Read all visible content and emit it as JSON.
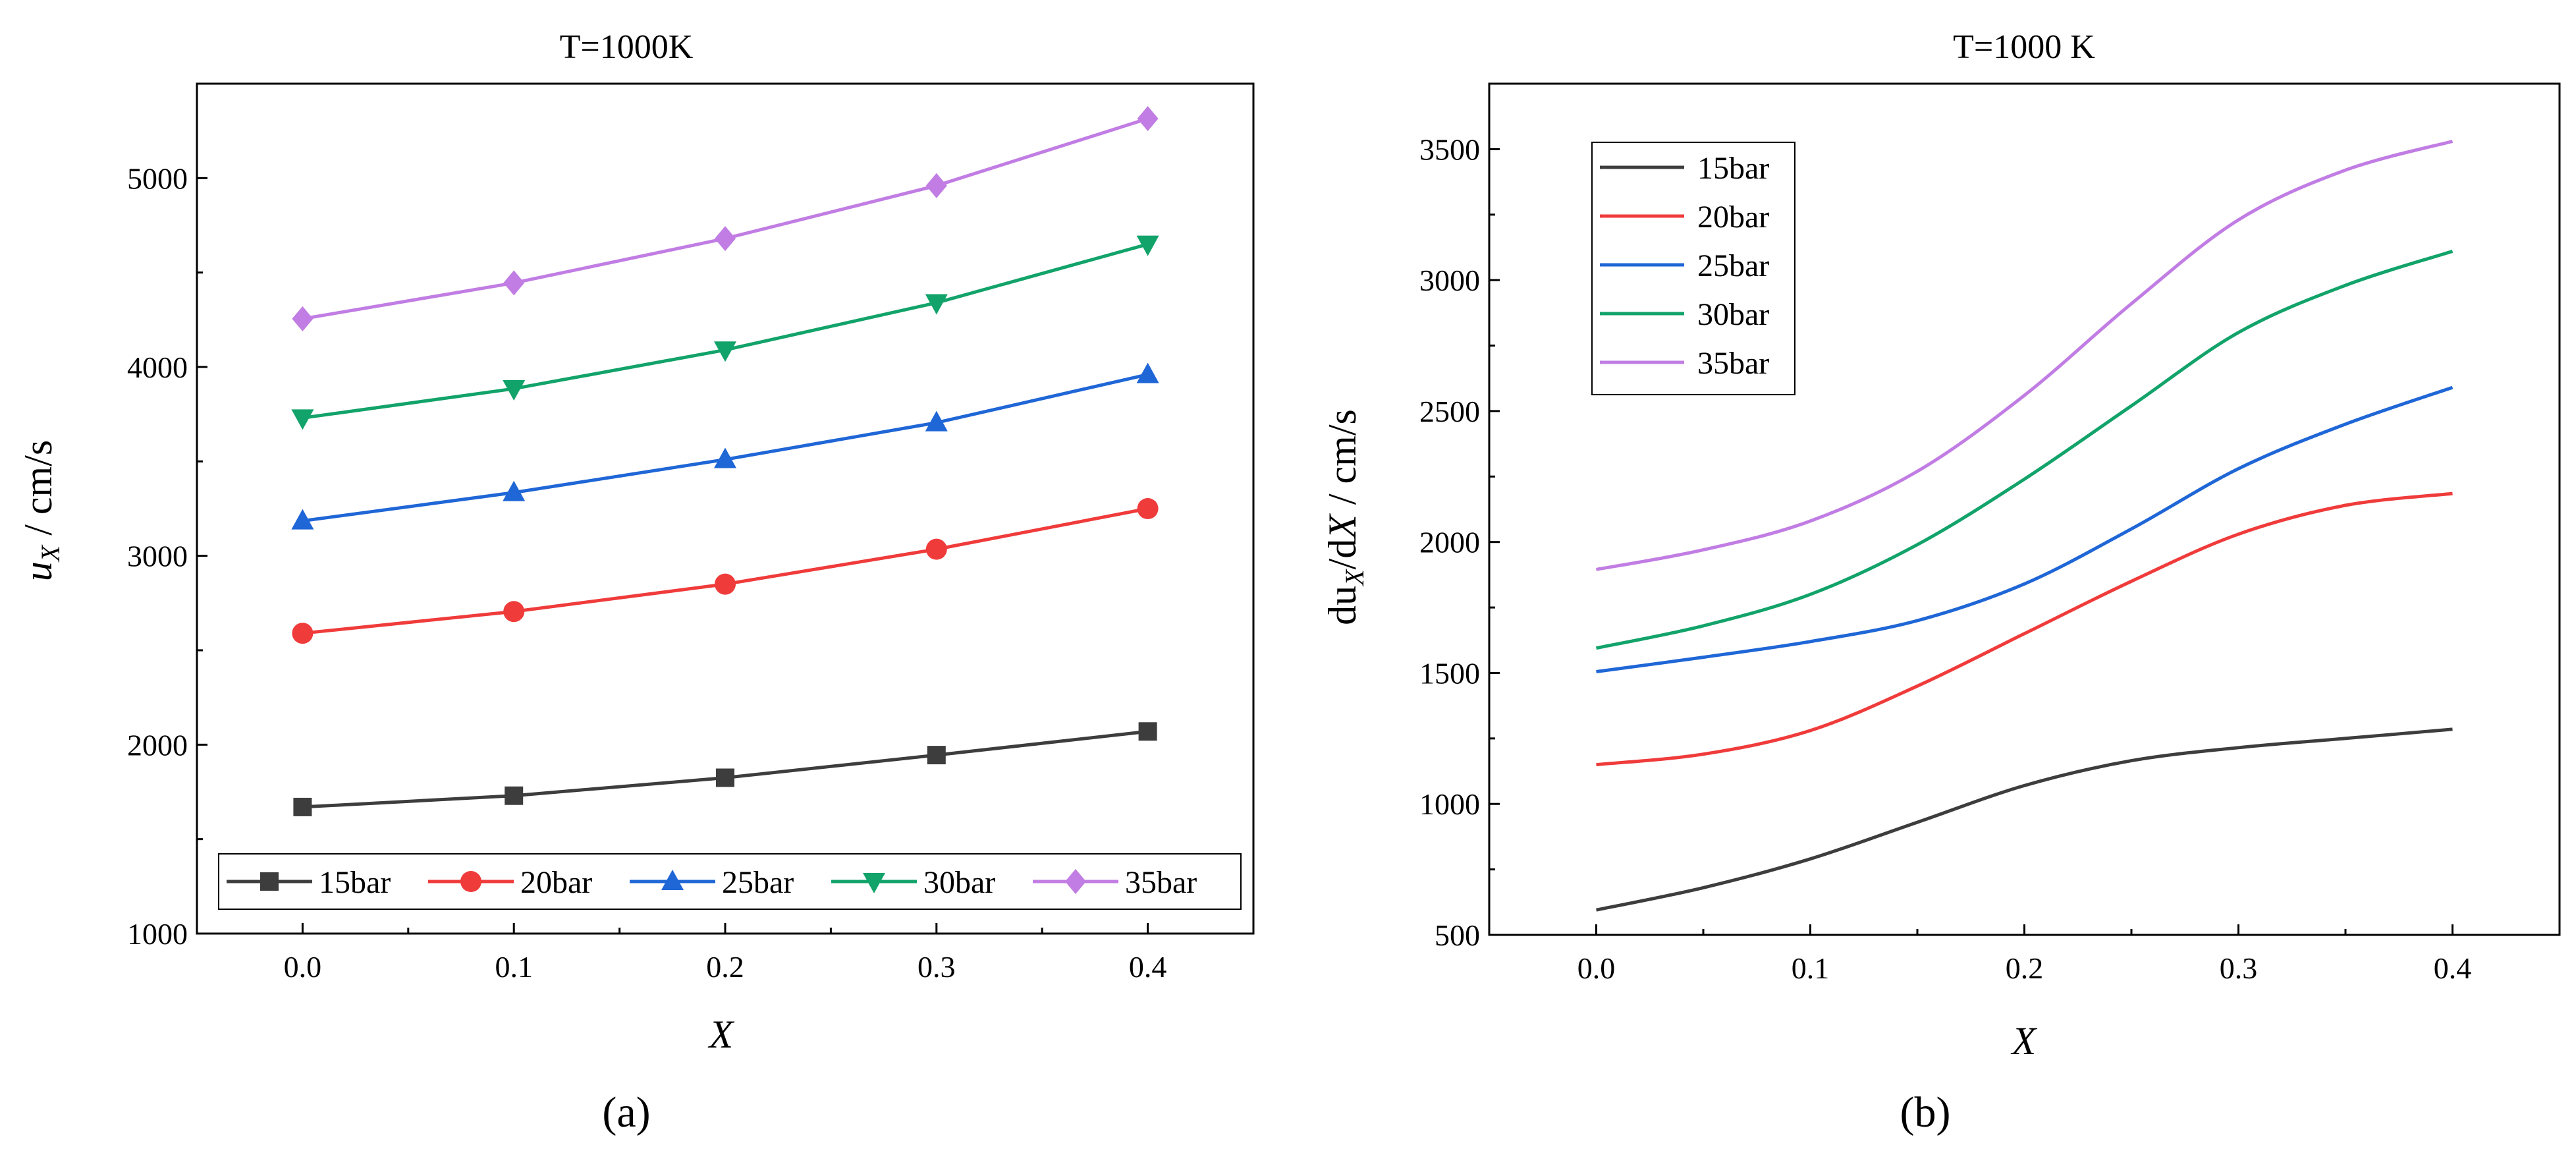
{
  "colors": {
    "15bar": "#3d3d3d",
    "20bar": "#f03b3b",
    "25bar": "#1f66d6",
    "30bar": "#12a36a",
    "35bar": "#c17de3"
  },
  "panel_labels": {
    "a": "(a)",
    "b": "(b)"
  },
  "chart_data": [
    {
      "type": "line",
      "title": "T=1000K",
      "xlabel": "X",
      "ylabel_main": "u",
      "ylabel_sub": "X",
      "ylabel_rest": " / cm/s",
      "xlim": [
        -0.05,
        0.45
      ],
      "ylim": [
        1000,
        5500
      ],
      "xticks": [
        0.0,
        0.1,
        0.2,
        0.3,
        0.4
      ],
      "xtick_labels": [
        "0.0",
        "0.1",
        "0.2",
        "0.3",
        "0.4"
      ],
      "yticks": [
        1000,
        2000,
        3000,
        4000,
        5000
      ],
      "ytick_labels": [
        "1000",
        "2000",
        "3000",
        "4000",
        "5000"
      ],
      "legend_position": "bottom",
      "x": [
        0.0,
        0.1,
        0.2,
        0.3,
        0.4
      ],
      "series": [
        {
          "name": "15bar",
          "marker": "square",
          "values": [
            1670,
            1730,
            1825,
            1945,
            2070
          ]
        },
        {
          "name": "20bar",
          "marker": "circle",
          "values": [
            2590,
            2705,
            2850,
            3035,
            3250
          ]
        },
        {
          "name": "25bar",
          "marker": "triangle-up",
          "values": [
            3185,
            3335,
            3510,
            3705,
            3960
          ]
        },
        {
          "name": "30bar",
          "marker": "triangle-down",
          "values": [
            3730,
            3885,
            4090,
            4340,
            4650
          ]
        },
        {
          "name": "35bar",
          "marker": "diamond",
          "values": [
            4255,
            4445,
            4680,
            4960,
            5315
          ]
        }
      ]
    },
    {
      "type": "line",
      "title": "T=1000 K",
      "xlabel": "X",
      "ylabel_pre": "du",
      "ylabel_sub": "X",
      "ylabel_mid": "/d",
      "ylabel_var": "X",
      "ylabel_rest": "  /  cm/s",
      "xlim": [
        -0.05,
        0.45
      ],
      "ylim": [
        500,
        3750
      ],
      "xticks": [
        0.0,
        0.1,
        0.2,
        0.3,
        0.4
      ],
      "xtick_labels": [
        "0.0",
        "0.1",
        "0.2",
        "0.3",
        "0.4"
      ],
      "yticks": [
        500,
        1000,
        1500,
        2000,
        2500,
        3000,
        3500
      ],
      "ytick_labels": [
        "500",
        "1000",
        "1500",
        "2000",
        "2500",
        "3000",
        "3500"
      ],
      "legend_position": "top-left",
      "x": [
        0.0,
        0.05,
        0.1,
        0.15,
        0.2,
        0.25,
        0.3,
        0.35,
        0.4
      ],
      "series": [
        {
          "name": "15bar",
          "values": [
            595,
            680,
            790,
            930,
            1070,
            1165,
            1215,
            1250,
            1285
          ]
        },
        {
          "name": "20bar",
          "values": [
            1150,
            1190,
            1280,
            1450,
            1650,
            1850,
            2030,
            2140,
            2185
          ]
        },
        {
          "name": "25bar",
          "values": [
            1505,
            1560,
            1620,
            1700,
            1840,
            2050,
            2280,
            2450,
            2590
          ]
        },
        {
          "name": "30bar",
          "values": [
            1595,
            1680,
            1800,
            1990,
            2240,
            2520,
            2800,
            2980,
            3110
          ]
        },
        {
          "name": "35bar",
          "values": [
            1895,
            1970,
            2080,
            2270,
            2560,
            2910,
            3230,
            3420,
            3530
          ]
        }
      ]
    }
  ]
}
